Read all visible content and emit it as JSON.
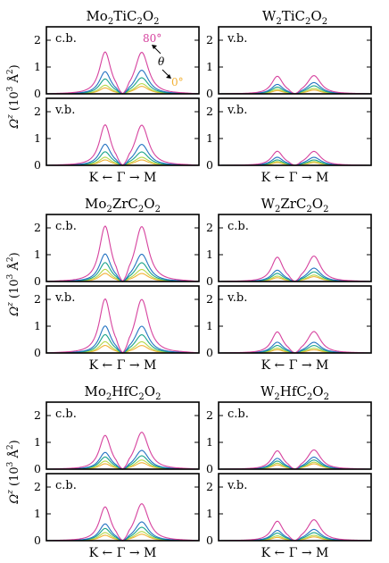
{
  "colors": {
    "theta_80": "#d6429e",
    "theta_60": "#2473c2",
    "theta_40": "#1aa48a",
    "theta_20": "#b4d84a",
    "theta_0": "#f2b136",
    "theta_gray": "#999999"
  },
  "legend": {
    "top_label": "80°",
    "theta_symbol": "θ",
    "bottom_label": "0°"
  },
  "y_axis_label": {
    "main": "Ω",
    "sup": "z",
    "unit_open": " (10",
    "unit_exp": "3",
    "unit_angstrom": " Å",
    "unit_exp2": "2",
    "unit_close": ")"
  },
  "x_axis_label": "K ← Γ → M",
  "chart_data": [
    {
      "type": "line",
      "title_parts": [
        "Mo",
        "2",
        "TiC",
        "2",
        "O",
        "2"
      ],
      "subplots": [
        {
          "label": "c.b.",
          "ylim": [
            0,
            2.5
          ],
          "yticks": [
            0,
            1,
            2
          ],
          "series": [
            {
              "theta": "80°",
              "left_peak": 1.55,
              "right_peak": 1.55
            },
            {
              "theta": "60°",
              "left_peak": 0.82,
              "right_peak": 0.88
            },
            {
              "theta": "40°",
              "left_peak": 0.55,
              "right_peak": 0.6
            },
            {
              "theta": "20°",
              "left_peak": 0.32,
              "right_peak": 0.38
            },
            {
              "theta": "0°",
              "left_peak": 0.22,
              "right_peak": 0.28
            }
          ]
        },
        {
          "label": "v.b.",
          "ylim": [
            0,
            2.5
          ],
          "yticks": [
            0,
            1,
            2
          ],
          "series": [
            {
              "theta": "80°",
              "left_peak": 1.5,
              "right_peak": 1.5
            },
            {
              "theta": "60°",
              "left_peak": 0.78,
              "right_peak": 0.78
            },
            {
              "theta": "40°",
              "left_peak": 0.5,
              "right_peak": 0.5
            },
            {
              "theta": "20°",
              "left_peak": 0.3,
              "right_peak": 0.3
            },
            {
              "theta": "0°",
              "left_peak": 0.2,
              "right_peak": 0.2
            }
          ]
        }
      ]
    },
    {
      "type": "line",
      "title_parts": [
        "W",
        "2",
        "TiC",
        "2",
        "O",
        "2"
      ],
      "subplots": [
        {
          "label": "v.b.",
          "ylim": [
            0,
            2.5
          ],
          "yticks": [
            0,
            1,
            2
          ],
          "series": [
            {
              "theta": "80°",
              "left_peak": 0.65,
              "right_peak": 0.68
            },
            {
              "theta": "60°",
              "left_peak": 0.35,
              "right_peak": 0.42
            },
            {
              "theta": "40°",
              "left_peak": 0.25,
              "right_peak": 0.3
            },
            {
              "theta": "20°",
              "left_peak": 0.17,
              "right_peak": 0.2
            },
            {
              "theta": "0°",
              "left_peak": 0.12,
              "right_peak": 0.14
            }
          ]
        },
        {
          "label": "v.b.",
          "ylim": [
            0,
            2.5
          ],
          "yticks": [
            0,
            1,
            2
          ],
          "series": [
            {
              "theta": "80°",
              "left_peak": 0.52,
              "right_peak": 0.52
            },
            {
              "theta": "60°",
              "left_peak": 0.3,
              "right_peak": 0.3
            },
            {
              "theta": "40°",
              "left_peak": 0.2,
              "right_peak": 0.2
            },
            {
              "theta": "20°",
              "left_peak": 0.14,
              "right_peak": 0.14
            },
            {
              "theta": "0°",
              "left_peak": 0.1,
              "right_peak": 0.1
            }
          ]
        }
      ]
    },
    {
      "type": "line",
      "title_parts": [
        "Mo",
        "2",
        "ZrC",
        "2",
        "O",
        "2"
      ],
      "subplots": [
        {
          "label": "c.b.",
          "ylim": [
            0,
            2.5
          ],
          "yticks": [
            0,
            1,
            2
          ],
          "series": [
            {
              "theta": "80°",
              "left_peak": 2.05,
              "right_peak": 2.05
            },
            {
              "theta": "60°",
              "left_peak": 1.02,
              "right_peak": 1.02
            },
            {
              "theta": "40°",
              "left_peak": 0.7,
              "right_peak": 0.7
            },
            {
              "theta": "20°",
              "left_peak": 0.45,
              "right_peak": 0.45
            },
            {
              "theta": "0°",
              "left_peak": 0.3,
              "right_peak": 0.3
            }
          ]
        },
        {
          "label": "v.b.",
          "ylim": [
            0,
            2.5
          ],
          "yticks": [
            0,
            1,
            2
          ],
          "series": [
            {
              "theta": "80°",
              "left_peak": 2.0,
              "right_peak": 2.0
            },
            {
              "theta": "60°",
              "left_peak": 1.0,
              "right_peak": 1.0
            },
            {
              "theta": "40°",
              "left_peak": 0.68,
              "right_peak": 0.68
            },
            {
              "theta": "20°",
              "left_peak": 0.42,
              "right_peak": 0.42
            },
            {
              "theta": "0°",
              "left_peak": 0.28,
              "right_peak": 0.28
            }
          ]
        }
      ]
    },
    {
      "type": "line",
      "title_parts": [
        "W",
        "2",
        "ZrC",
        "2",
        "O",
        "2"
      ],
      "subplots": [
        {
          "label": "c.b.",
          "ylim": [
            0,
            2.5
          ],
          "yticks": [
            0,
            1,
            2
          ],
          "series": [
            {
              "theta": "80°",
              "left_peak": 0.9,
              "right_peak": 0.95
            },
            {
              "theta": "60°",
              "left_peak": 0.42,
              "right_peak": 0.5
            },
            {
              "theta": "40°",
              "left_peak": 0.3,
              "right_peak": 0.36
            },
            {
              "theta": "20°",
              "left_peak": 0.2,
              "right_peak": 0.24
            },
            {
              "theta": "0°",
              "left_peak": 0.14,
              "right_peak": 0.18
            }
          ]
        },
        {
          "label": "v.b.",
          "ylim": [
            0,
            2.5
          ],
          "yticks": [
            0,
            1,
            2
          ],
          "series": [
            {
              "theta": "80°",
              "left_peak": 0.78,
              "right_peak": 0.8
            },
            {
              "theta": "60°",
              "left_peak": 0.4,
              "right_peak": 0.4
            },
            {
              "theta": "40°",
              "left_peak": 0.28,
              "right_peak": 0.28
            },
            {
              "theta": "20°",
              "left_peak": 0.18,
              "right_peak": 0.18
            },
            {
              "theta": "0°",
              "left_peak": 0.12,
              "right_peak": 0.12
            }
          ]
        }
      ]
    },
    {
      "type": "line",
      "title_parts": [
        "Mo",
        "2",
        "HfC",
        "2",
        "O",
        "2"
      ],
      "subplots": [
        {
          "label": "c.b.",
          "ylim": [
            0,
            2.5
          ],
          "yticks": [
            0,
            1,
            2
          ],
          "series": [
            {
              "theta": "80°",
              "left_peak": 1.25,
              "right_peak": 1.38
            },
            {
              "theta": "60°",
              "left_peak": 0.62,
              "right_peak": 0.7
            },
            {
              "theta": "40°",
              "left_peak": 0.45,
              "right_peak": 0.5
            },
            {
              "theta": "20°",
              "left_peak": 0.3,
              "right_peak": 0.34
            },
            {
              "theta": "0°",
              "left_peak": 0.2,
              "right_peak": 0.24
            }
          ]
        },
        {
          "label": "c.b.",
          "ylim": [
            0,
            2.5
          ],
          "yticks": [
            0,
            1,
            2
          ],
          "series": [
            {
              "theta": "80°",
              "left_peak": 1.25,
              "right_peak": 1.38
            },
            {
              "theta": "60°",
              "left_peak": 0.62,
              "right_peak": 0.7
            },
            {
              "theta": "40°",
              "left_peak": 0.45,
              "right_peak": 0.5
            },
            {
              "theta": "20°",
              "left_peak": 0.3,
              "right_peak": 0.34
            },
            {
              "theta": "0°",
              "left_peak": 0.2,
              "right_peak": 0.24
            }
          ]
        }
      ]
    },
    {
      "type": "line",
      "title_parts": [
        "W",
        "2",
        "HfC",
        "2",
        "O",
        "2"
      ],
      "subplots": [
        {
          "label": "c.b.",
          "ylim": [
            0,
            2.5
          ],
          "yticks": [
            0,
            1,
            2
          ],
          "series": [
            {
              "theta": "80°",
              "left_peak": 0.68,
              "right_peak": 0.72
            },
            {
              "theta": "60°",
              "left_peak": 0.4,
              "right_peak": 0.45
            },
            {
              "theta": "40°",
              "left_peak": 0.3,
              "right_peak": 0.34
            },
            {
              "theta": "20°",
              "left_peak": 0.22,
              "right_peak": 0.26
            },
            {
              "theta": "0°",
              "left_peak": 0.16,
              "right_peak": 0.2
            }
          ]
        },
        {
          "label": "v.b.",
          "ylim": [
            0,
            2.5
          ],
          "yticks": [
            0,
            1,
            2
          ],
          "series": [
            {
              "theta": "80°",
              "left_peak": 0.72,
              "right_peak": 0.78
            },
            {
              "theta": "60°",
              "left_peak": 0.38,
              "right_peak": 0.42
            },
            {
              "theta": "40°",
              "left_peak": 0.28,
              "right_peak": 0.3
            },
            {
              "theta": "20°",
              "left_peak": 0.18,
              "right_peak": 0.2
            },
            {
              "theta": "0°",
              "left_peak": 0.12,
              "right_peak": 0.14
            }
          ]
        }
      ]
    }
  ]
}
